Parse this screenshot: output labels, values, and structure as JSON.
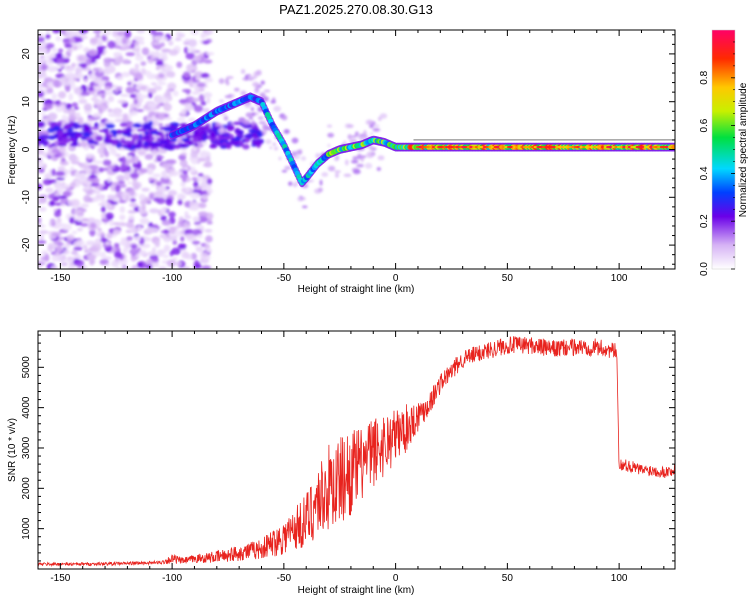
{
  "title": "PAZ1.2025.270.08.30.G13",
  "colors": {
    "snr_line": "#e8231e",
    "axis": "#000000",
    "background": "#ffffff"
  },
  "chart_data": [
    {
      "type": "heatmap",
      "name": "spectrogram",
      "xlabel": "Height of straight line (km)",
      "ylabel": "Frequency (Hz)",
      "xlim": [
        -160,
        125
      ],
      "ylim": [
        -25,
        25
      ],
      "x_ticks": [
        -150,
        -100,
        -50,
        0,
        50,
        100
      ],
      "y_ticks": [
        -20,
        -10,
        0,
        10,
        20
      ],
      "ridge_frequency": {
        "x": [
          -100,
          -90,
          -80,
          -75,
          -70,
          -65,
          -60,
          -55,
          -50,
          -45,
          -42,
          -40,
          -35,
          -30,
          -25,
          -20,
          -15,
          -10,
          -5,
          0,
          10,
          20,
          50,
          100,
          125
        ],
        "y": [
          3,
          5,
          8,
          9,
          10,
          11,
          10,
          5,
          1,
          -4,
          -7,
          -6,
          -3,
          -1,
          0,
          0.5,
          1,
          2,
          1.5,
          0.5,
          0.5,
          0.5,
          0.5,
          0.5,
          0.5
        ]
      },
      "colorbar": {
        "label": "Normalized spectral amplitude",
        "range": [
          0,
          1
        ],
        "ticks": [
          "0.0",
          "0.2",
          "0.4",
          "0.6",
          "0.8"
        ],
        "tick_values": [
          0.0,
          0.2,
          0.4,
          0.6,
          0.8
        ]
      }
    },
    {
      "type": "line",
      "name": "snr",
      "xlabel": "Height of straight line (km)",
      "ylabel": "SNR (10 * v/v)",
      "xlim": [
        -160,
        125
      ],
      "ylim": [
        0,
        5900
      ],
      "x_ticks": [
        -150,
        -100,
        -50,
        0,
        50,
        100
      ],
      "y_ticks": [
        1000,
        2000,
        3000,
        4000,
        5000
      ],
      "series": [
        {
          "name": "SNR",
          "x": [
            -160,
            -140,
            -120,
            -105,
            -100,
            -95,
            -90,
            -80,
            -70,
            -60,
            -55,
            -50,
            -45,
            -40,
            -35,
            -30,
            -25,
            -20,
            -15,
            -10,
            -5,
            0,
            5,
            10,
            15,
            20,
            30,
            40,
            50,
            60,
            70,
            80,
            90,
            98,
            99,
            100,
            105,
            110,
            115,
            120,
            125
          ],
          "y": [
            120,
            120,
            140,
            160,
            250,
            200,
            250,
            300,
            400,
            500,
            650,
            800,
            1000,
            1200,
            1700,
            2000,
            2200,
            2400,
            2600,
            2900,
            3100,
            3300,
            3500,
            3800,
            4100,
            4600,
            5200,
            5400,
            5550,
            5550,
            5450,
            5500,
            5500,
            5400,
            5300,
            2600,
            2550,
            2450,
            2450,
            2400,
            2450
          ],
          "jitter": [
            40,
            40,
            40,
            40,
            120,
            80,
            100,
            150,
            200,
            250,
            350,
            450,
            550,
            700,
            900,
            1100,
            1100,
            1100,
            900,
            900,
            800,
            700,
            600,
            400,
            300,
            250,
            220,
            220,
            220,
            220,
            220,
            220,
            220,
            200,
            300,
            150,
            150,
            150,
            150,
            150,
            150
          ]
        }
      ]
    }
  ]
}
